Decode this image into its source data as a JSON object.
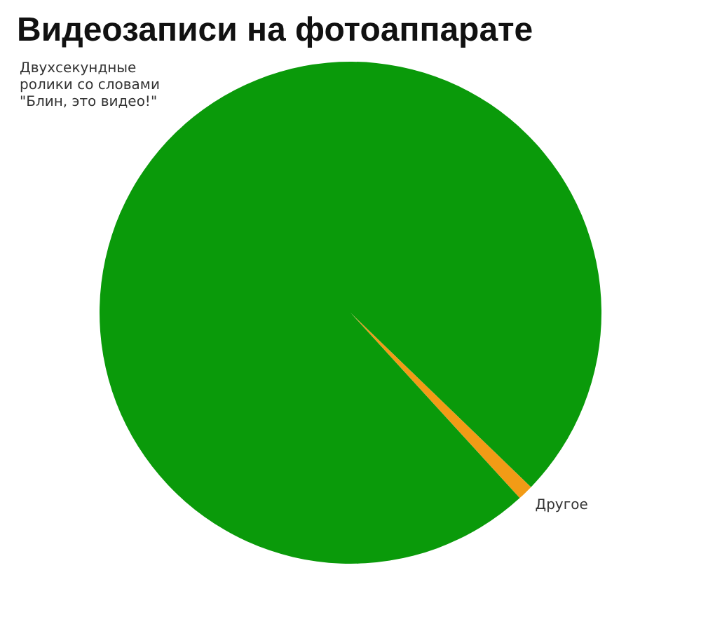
{
  "chart_data": {
    "type": "pie",
    "title": "Видеозаписи на фотоаппарате",
    "categories": [
      "Другое",
      "Двухсекундные ролики со словами \"Блин, это видео!\""
    ],
    "values": [
      1,
      99
    ],
    "colors": [
      "#f29b16",
      "#0a9a0a"
    ],
    "legend": false
  }
}
